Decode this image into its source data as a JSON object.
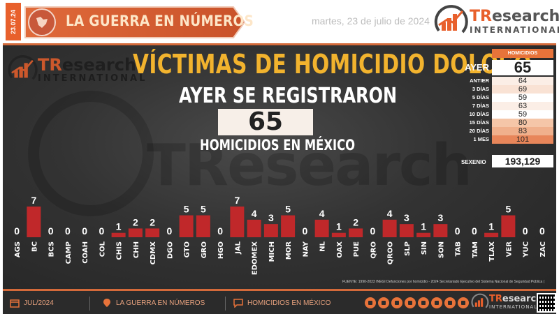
{
  "header": {
    "date_tab": "23.07.24",
    "section_title": "LA GUERRA EN NÚMEROS",
    "date": "martes, 23 de julio de 2024",
    "brand": {
      "name_prefix": "TR",
      "name_rest": "esearch",
      "sub": "INTERNATIONAL"
    }
  },
  "main": {
    "headline": "VÍCTIMAS DE HOMICIDIO DOLOSO",
    "subheadline": "AYER SE REGISTRARON",
    "big_number": "65",
    "caption": "HOMICIDIOS EN MÉXICO",
    "watermark": "TResearch"
  },
  "stats": {
    "header": "HOMICIDIOS",
    "rows": [
      {
        "label": "AYER",
        "value": "65",
        "bg": "#ffffff"
      },
      {
        "label": "ANTIER",
        "value": "64",
        "bg": "#fbeee6"
      },
      {
        "label": "3 DÍAS",
        "value": "69",
        "bg": "#f9e2d4"
      },
      {
        "label": "5 DÍAS",
        "value": "59",
        "bg": "#ffffff"
      },
      {
        "label": "7 DÍAS",
        "value": "63",
        "bg": "#fbeee6"
      },
      {
        "label": "10 DÍAS",
        "value": "59",
        "bg": "#ffffff"
      },
      {
        "label": "15 DÍAS",
        "value": "80",
        "bg": "#f5c6a8"
      },
      {
        "label": "20 DÍAS",
        "value": "83",
        "bg": "#f0b08c"
      },
      {
        "label": "1 MES",
        "value": "101",
        "bg": "#e8865a"
      }
    ],
    "sexenio_label": "SEXENIO",
    "sexenio_value": "193,129"
  },
  "chart_data": {
    "type": "bar",
    "categories": [
      "AGS",
      "BC",
      "BCS",
      "CAMP",
      "COAH",
      "COL",
      "CHIS",
      "CHH",
      "CDMX",
      "DGO",
      "GTO",
      "GRO",
      "HGO",
      "JAL",
      "EDOMEX",
      "MICH",
      "MOR",
      "NAY",
      "NL",
      "OAX",
      "PUE",
      "QRO",
      "QROO",
      "SLP",
      "SIN",
      "SON",
      "TAB",
      "TAM",
      "TLAX",
      "VER",
      "YUC",
      "ZAC"
    ],
    "values": [
      0,
      7,
      0,
      0,
      0,
      0,
      1,
      2,
      2,
      0,
      5,
      5,
      0,
      7,
      4,
      3,
      5,
      0,
      4,
      1,
      2,
      0,
      4,
      3,
      1,
      3,
      0,
      0,
      1,
      5,
      0,
      0
    ],
    "ylim": [
      0,
      7
    ],
    "bar_color": "#c0282a"
  },
  "source_note": "FUENTE: 1990-2023 INEGI Defunciones por homicidio - 2024 Secretariado Ejecutivo del Sistema Nacional de Seguridad Pública (",
  "footer": {
    "month": "JUL/2024",
    "section": "LA GUERRA EN NÚMEROS",
    "topic": "HOMICIDIOS EN MÉXICO"
  },
  "colors": {
    "accent": "#e8602c",
    "headline": "#f2b32e",
    "bar": "#c0282a"
  },
  "icons": [
    "calendar-icon",
    "map-pin-icon",
    "chat-icon",
    "globe-icon",
    "whatsapp-icon",
    "email-icon",
    "youtube-icon",
    "twitter-icon",
    "facebook-icon",
    "linkedin-icon",
    "qr-code-icon"
  ]
}
